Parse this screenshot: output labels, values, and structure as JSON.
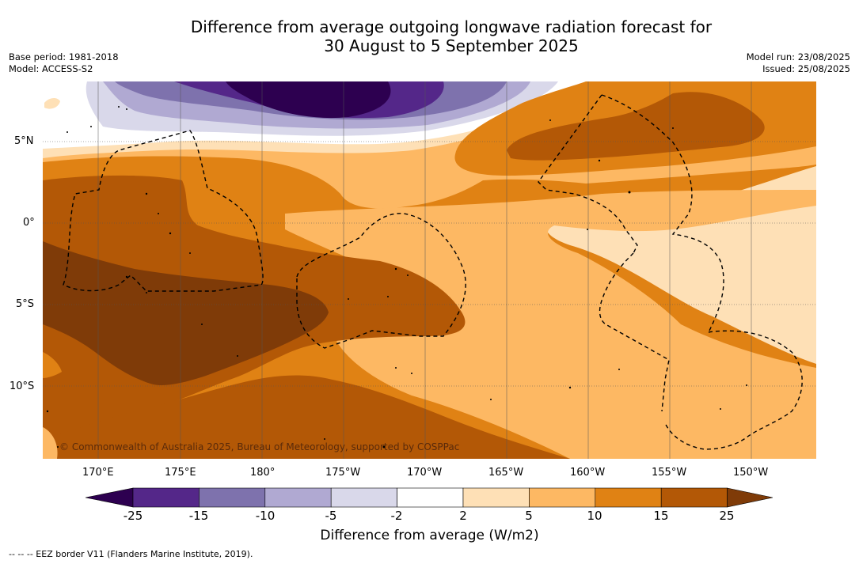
{
  "title_line1": "Difference from average outgoing longwave radiation forecast for",
  "title_line2": "30 August to 5 September 2025",
  "base_period": "Base period: 1981-2018",
  "model": "Model: ACCESS-S2",
  "model_run": "Model run: 23/08/2025",
  "issued": "Issued: 25/08/2025",
  "lon_labels": [
    "170°E",
    "175°E",
    "180°",
    "175°W",
    "170°W",
    "165°W",
    "160°W",
    "155°W",
    "150°W"
  ],
  "lat_labels": [
    "5°N",
    "0°",
    "5°S",
    "10°S"
  ],
  "colorbar": {
    "labels": [
      "-25",
      "-15",
      "-10",
      "-5",
      "-2",
      "2",
      "5",
      "10",
      "15",
      "25"
    ],
    "colors": [
      "#2d0050",
      "#542789",
      "#7e72ad",
      "#b0a9d2",
      "#d9d8ea",
      "#ffffff",
      "#fee0b6",
      "#fdb863",
      "#e08214",
      "#b35806",
      "#7f3b08"
    ],
    "title": "Difference from average (W/m2)"
  },
  "copyright": "© Commonwealth of Australia 2025, Bureau of Meteorology, supported by COSPPac",
  "footnote": "--  --  -- EEZ border V11 (Flanders Marine Institute, 2019)."
}
